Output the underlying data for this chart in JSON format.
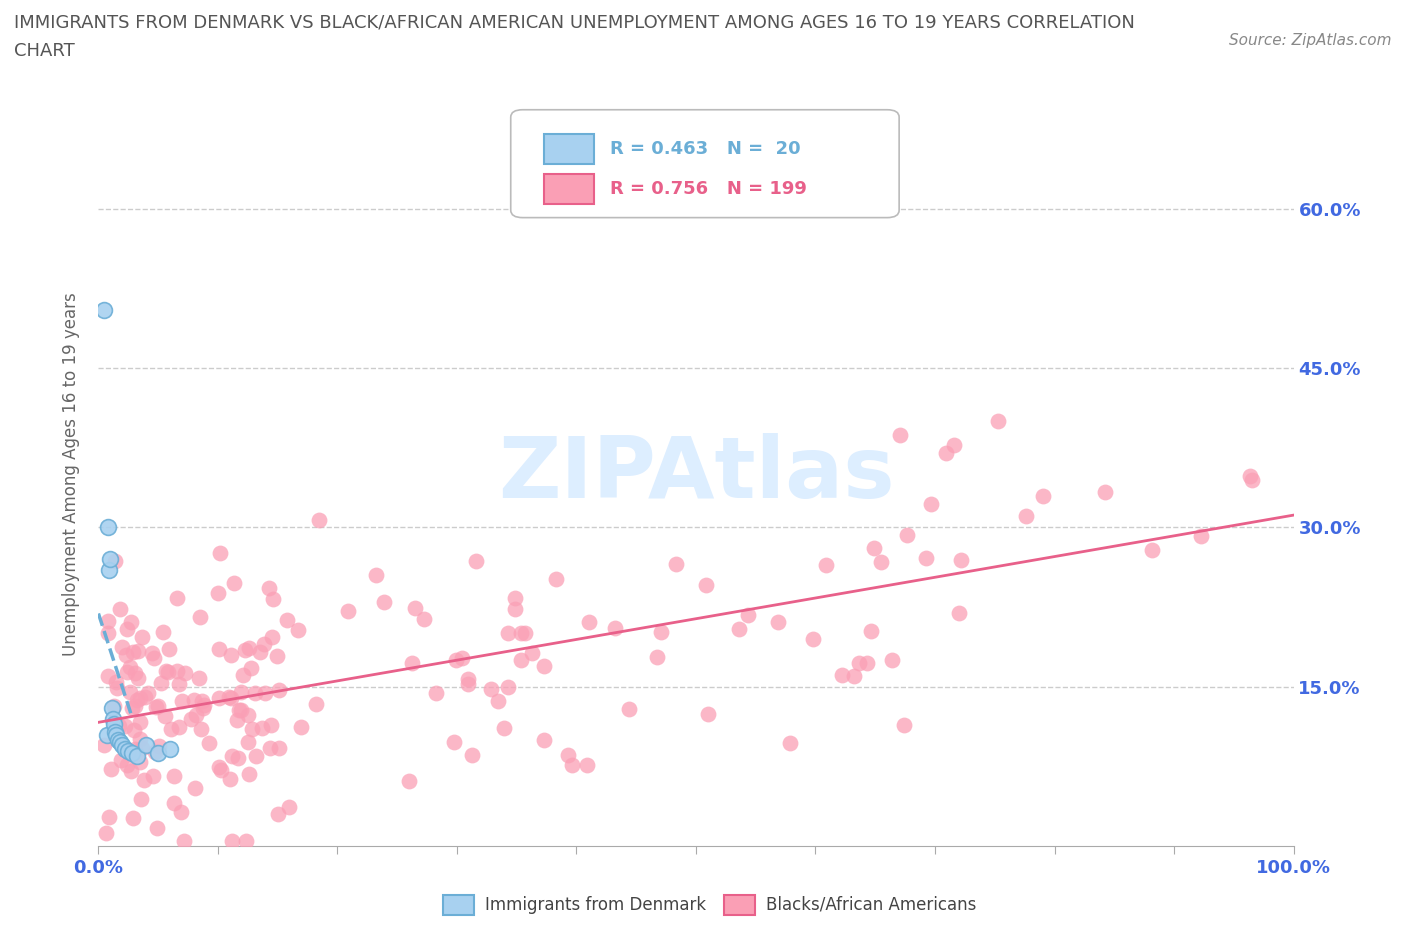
{
  "title_line1": "IMMIGRANTS FROM DENMARK VS BLACK/AFRICAN AMERICAN UNEMPLOYMENT AMONG AGES 16 TO 19 YEARS CORRELATION",
  "title_line2": "CHART",
  "source_text": "Source: ZipAtlas.com",
  "ylabel": "Unemployment Among Ages 16 to 19 years",
  "xlim": [
    0,
    1.0
  ],
  "ylim": [
    0,
    0.7
  ],
  "xticks": [
    0.0,
    0.1,
    0.2,
    0.3,
    0.4,
    0.5,
    0.6,
    0.7,
    0.8,
    0.9,
    1.0
  ],
  "xticklabels": [
    "0.0%",
    "",
    "",
    "",
    "",
    "",
    "",
    "",
    "",
    "",
    "100.0%"
  ],
  "yticks": [
    0.15,
    0.3,
    0.45,
    0.6
  ],
  "yticklabels": [
    "15.0%",
    "30.0%",
    "45.0%",
    "60.0%"
  ],
  "denmark_color": "#6baed6",
  "denmark_color_fill": "#a8d1f0",
  "african_color": "#fa9fb5",
  "african_color_line": "#e8608a",
  "denmark_R": 0.463,
  "denmark_N": 20,
  "african_R": 0.756,
  "african_N": 199,
  "background_color": "#ffffff",
  "grid_color": "#cccccc",
  "title_color": "#555555",
  "axis_label_color": "#666666",
  "tick_label_color": "#4169e1",
  "watermark_color": "#ddeeff"
}
